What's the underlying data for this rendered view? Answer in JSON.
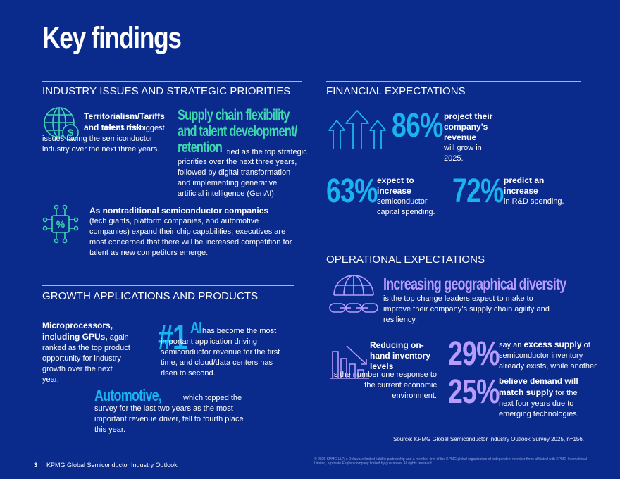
{
  "page": {
    "title": "Key findings",
    "number": "3",
    "footer_title": "KPMG Global Semiconductor Industry Outlook",
    "legal": "© 2025 KPMG LLP, a Delaware limited liability partnership and a member firm of the KPMG global organization of independent member firms affiliated with KPMG International Limited, a private English company limited by guarantee. All rights reserved.",
    "source": "Source: KPMG Global Semiconductor Industry Outlook Survey 2025, n=156."
  },
  "industry": {
    "heading": "INDUSTRY ISSUES AND STRATEGIC PRIORITIES",
    "terr_bold": "Territorialism/Tariffs and talent risk",
    "terr_text": " tied as the biggest issues facing the semiconductor industry over the next three years.",
    "supply_head_1": "Supply chain flexibility",
    "supply_head_2": "and talent development/",
    "supply_head_3": "retention",
    "supply_text_1": " tied as the top strategic",
    "supply_text_2": "priorities over the next three years, followed by digital transformation and implementing generative artificial intelligence (GenAI).",
    "nontrad_bold": "As nontraditional semiconductor companies",
    "nontrad_text": "(tech giants, platform companies, and automotive companies) expand their chip capabilities, executives are most concerned that there will be increased competition for talent as new competitors emerge."
  },
  "growth": {
    "heading": "GROWTH APPLICATIONS AND PRODUCTS",
    "micro_bold": "Microprocessors, including GPUs,",
    "micro_text": " again ranked as the top product opportunity for industry growth over the next year.",
    "rank": "#1",
    "ai_word": "AI",
    "ai_text": " has become the most important application driving semiconductor revenue for the first time, and cloud/data centers has risen to second.",
    "auto_word": "Automotive,",
    "auto_text": " which topped the survey for the last two years as the most important revenue driver, fell to fourth place this year."
  },
  "financial": {
    "heading": "FINANCIAL EXPECTATIONS",
    "stat1_value": "86%",
    "stat1_bold": "project their company’s revenue",
    "stat1_text": "will grow in 2025.",
    "stat2_value": "63%",
    "stat2_bold": "expect to increase",
    "stat2_text": "semiconductor capital spending.",
    "stat3_value": "72%",
    "stat3_bold": "predict an increase",
    "stat3_text": "in R&D spending."
  },
  "operational": {
    "heading": "OPERATIONAL EXPECTATIONS",
    "geo_head": "Increasing geographical diversity",
    "geo_text": "is the top change leaders expect to make to improve their company’s supply chain agility and resiliency.",
    "inv_bold": "Reducing on-hand inventory levels",
    "inv_text": "is the number one response to the current economic environment.",
    "stat4_value": "29%",
    "stat4_pre": "say an ",
    "stat4_bold": "excess supply",
    "stat4_text": " of semiconductor inventory already exists, while another",
    "stat5_value": "25%",
    "stat5_bold": "believe demand will match supply",
    "stat5_text": " for the next four years due to emerging technologies."
  },
  "colors": {
    "background": "#0a2a8c",
    "green": "#3fd6b2",
    "cyan": "#19b4f0",
    "lavender": "#b69dff"
  },
  "icons": [
    "globe-dollar-icon",
    "chip-percent-icon",
    "arrows-up-icon",
    "globe-chain-icon",
    "bars-down-icon"
  ]
}
